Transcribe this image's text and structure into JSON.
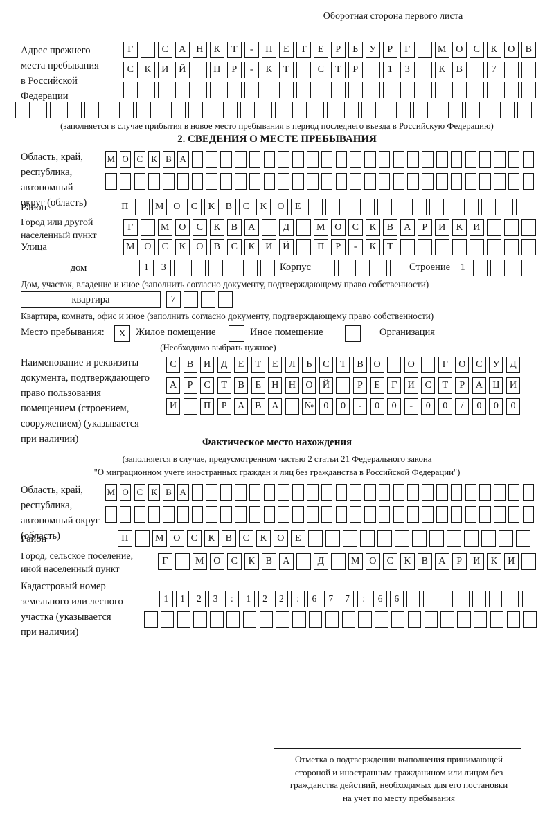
{
  "page": {
    "header_note": "Оборотная сторона первого листа",
    "section2_title": "2. СВЕДЕНИЯ О МЕСТЕ ПРЕБЫВАНИЯ",
    "fact_title": "Фактическое место нахождения"
  },
  "labels": {
    "prev_addr": "Адрес прежнего\nместа пребывания\nв Российской\nФедерации",
    "prev_addr_caption": "(заполняется в случае прибытия в новое место пребывания в период последнего въезда в Российскую Федерацию)",
    "region": "Область, край,\nреспублика,\nавтономный\nокруг (область)",
    "district": "Район",
    "city": "Город или другой\nнаселенный пункт",
    "street": "Улица",
    "house_field": "дом",
    "korpus": "Корпус",
    "stroenie": "Строение",
    "house_caption": "Дом, участок, владение и иное (заполнить согласно документу, подтверждающему право собственности)",
    "apartment_field": "квартира",
    "apartment_caption": "Квартира, комната, офис и иное (заполнить согласно документу, подтверждающему право собственности)",
    "stay_label": "Место пребывания:",
    "stay_opt1": "Жилое помещение",
    "stay_opt2": "Иное помещение",
    "stay_opt3": "Организация",
    "stay_note": "(Необходимо выбрать нужное)",
    "doc_label": "Наименование и реквизиты\nдокумента, подтверждающего\nправо пользования\nпомещением (строением,\nсооружением) (указывается\nпри наличии)",
    "fact_note": "(заполняется в случае, предусмотренном частью 2 статьи 21 Федерального закона\n\"О миграционном учете иностранных граждан и лиц без гражданства в Российской Федерации\")",
    "fact_region": "Область, край,\nреспублика,\nавтономный округ\n(область)",
    "fact_district": "Район",
    "fact_city": "Город, сельское поселение,\nиной населенный пункт",
    "cadastre": "Кадастровый номер\nземельного или лесного\nучастка (указывается\nпри наличии)",
    "mark_caption": "Отметка о подтверждении выполнения принимающей\nстороной и иностранным гражданином или лицом без\nгражданства действий, необходимых для его постановки\nна учет по месту пребывания"
  },
  "stay": {
    "residential_checked": "X",
    "other_checked": "",
    "org_checked": ""
  },
  "rows": {
    "prev_addr_1": {
      "cells": "Г САНКТ-ПЕТЕРБУРГ МОСКОВ",
      "count": 24,
      "size": "lg"
    },
    "prev_addr_2": {
      "cells": "СКИЙ ПР-КТ СТР 13 КВ 7",
      "count": 24,
      "size": "lg"
    },
    "prev_addr_3": {
      "cells": "",
      "count": 24,
      "size": "lg"
    },
    "prev_addr_4": {
      "cells": "",
      "count": 30,
      "size": "lg"
    },
    "region_1": {
      "cells": "МОСКВА",
      "count": 30,
      "size": "sm"
    },
    "region_2": {
      "cells": "",
      "count": 30,
      "size": "sm"
    },
    "district": {
      "cells": "П МОСКВСКОЕ",
      "count": 24,
      "size": "lg"
    },
    "city": {
      "cells": "Г МОСКВА Д МОСКВАРИКИ",
      "count": 24,
      "size": "lg"
    },
    "street": {
      "cells": "МОСКОВСКИЙ ПР-КТ",
      "count": 24,
      "size": "lg"
    },
    "house_num": {
      "cells": "13",
      "count": 8,
      "size": "lg"
    },
    "korpus_num": {
      "cells": "",
      "count": 5,
      "size": "lg"
    },
    "stroenie_num": {
      "cells": "1",
      "count": 4,
      "size": "lg"
    },
    "apartment_num": {
      "cells": "7",
      "count": 4,
      "size": "lg"
    },
    "doc_1": {
      "cells": "СВИДЕТЕЛЬСТВО О ГОСУД",
      "count": 21,
      "size": "doc"
    },
    "doc_2": {
      "cells": "АРСТВЕННОЙ РЕГИСТРАЦИ",
      "count": 21,
      "size": "doc"
    },
    "doc_3": {
      "cells": "И ПРАВА №00-00-00/000",
      "count": 21,
      "size": "doc"
    },
    "fact_region_1": {
      "cells": "МОСКВА",
      "count": 30,
      "size": "sm"
    },
    "fact_region_2": {
      "cells": "",
      "count": 30,
      "size": "sm"
    },
    "fact_district": {
      "cells": "П МОСКВСКОЕ",
      "count": 24,
      "size": "lg"
    },
    "fact_city": {
      "cells": "Г МОСКВА Д МОСКВАРИКИ",
      "count": 22,
      "size": "lg"
    },
    "cadastre_1": {
      "cells": "1123:122:677:66",
      "count": 23,
      "size": "kd"
    },
    "cadastre_2": {
      "cells": "",
      "count": 24,
      "size": "kd"
    }
  }
}
